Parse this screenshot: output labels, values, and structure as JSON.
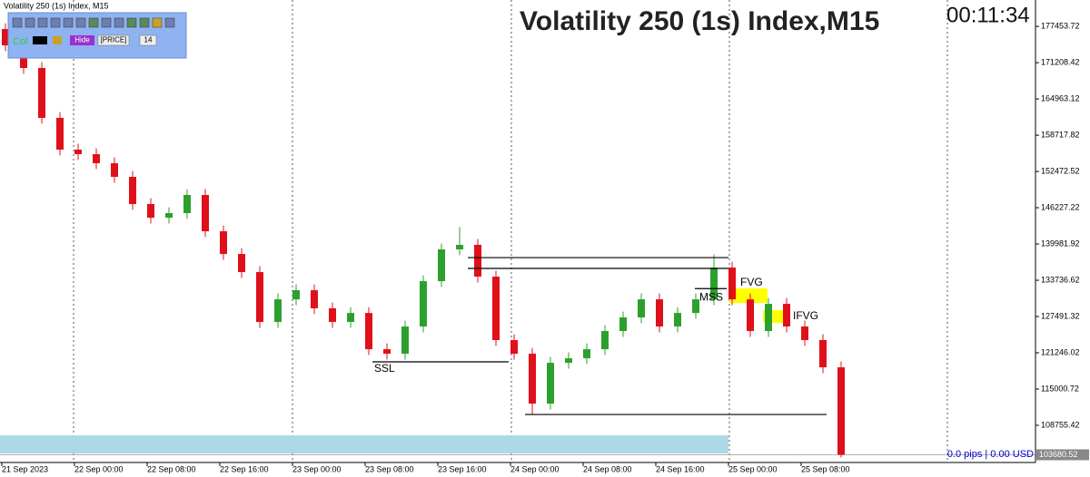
{
  "chart_data": {
    "type": "candlestick",
    "window_title": "Volatility 250 (1s) Index, M15",
    "title": "Volatility 250 (1s) Index,M15",
    "timer": "00:11:34",
    "toolbar": [
      "Col",
      "Hide",
      "[PRICE]",
      "14"
    ],
    "status": "0.0 pips | 0.00 USD",
    "up_color": "#2ca02c",
    "down_color": "#e0101a",
    "candles": [
      [
        177000,
        178000,
        173190,
        174190
      ],
      [
        174190,
        175190,
        169290,
        170290
      ],
      [
        170290,
        171290,
        160700,
        161700
      ],
      [
        161700,
        162700,
        155230,
        156230
      ],
      [
        156230,
        157230,
        154450,
        155450
      ],
      [
        155450,
        156450,
        152900,
        153900
      ],
      [
        153900,
        154900,
        150540,
        151540
      ],
      [
        151540,
        152540,
        145860,
        146860
      ],
      [
        146860,
        147860,
        143500,
        144500
      ],
      [
        144500,
        146300,
        143500,
        145300
      ],
      [
        145300,
        149420,
        144300,
        148420
      ],
      [
        148420,
        149420,
        141170,
        142170
      ],
      [
        142170,
        143170,
        137260,
        138260
      ],
      [
        138260,
        139260,
        134140,
        135140
      ],
      [
        135140,
        136140,
        125550,
        126550
      ],
      [
        126550,
        131450,
        125550,
        130450
      ],
      [
        130450,
        133020,
        129450,
        132020
      ],
      [
        132020,
        133020,
        127900,
        128900
      ],
      [
        128900,
        129900,
        125550,
        126550
      ],
      [
        126550,
        129100,
        125550,
        128100
      ],
      [
        128100,
        129100,
        120860,
        121860
      ],
      [
        121860,
        122860,
        120080,
        121080
      ],
      [
        121080,
        126770,
        120080,
        125770
      ],
      [
        125770,
        134580,
        124770,
        133580
      ],
      [
        133580,
        140050,
        132580,
        139050
      ],
      [
        139050,
        142900,
        138050,
        139830
      ],
      [
        139830,
        140830,
        133360,
        134360
      ],
      [
        134360,
        135360,
        122430,
        123430
      ],
      [
        123430,
        124430,
        120080,
        121080
      ],
      [
        121080,
        122080,
        110600,
        112490
      ],
      [
        112490,
        120520,
        111490,
        119520
      ],
      [
        119520,
        121300,
        118520,
        120300
      ],
      [
        120300,
        122860,
        119300,
        121860
      ],
      [
        121860,
        125990,
        120860,
        124990
      ],
      [
        124990,
        128330,
        123990,
        127330
      ],
      [
        127330,
        131450,
        126330,
        130450
      ],
      [
        130450,
        131450,
        124770,
        125770
      ],
      [
        125770,
        129100,
        124770,
        128100
      ],
      [
        128100,
        131450,
        127100,
        130450
      ],
      [
        130450,
        138200,
        129450,
        135920
      ],
      [
        135920,
        136920,
        129450,
        130450
      ],
      [
        130450,
        131450,
        123990,
        124990
      ],
      [
        124990,
        130670,
        123990,
        129670
      ],
      [
        129670,
        130670,
        124770,
        125770
      ],
      [
        125770,
        126770,
        122430,
        123430
      ],
      [
        123430,
        124430,
        117740,
        118740
      ],
      [
        118740,
        119740,
        103200,
        103680
      ]
    ],
    "ylim": [
      102350,
      182000
    ],
    "yticks": [
      177453.72,
      171208.42,
      164963.12,
      158717.82,
      152472.52,
      146227.22,
      139981.92,
      133736.62,
      127491.32,
      121246.02,
      115000.72,
      108755.42
    ],
    "current_price": 103680.52,
    "xticks": [
      "21 Sep 2023",
      "22 Sep 00:00",
      "22 Sep 08:00",
      "22 Sep 16:00",
      "23 Sep 00:00",
      "23 Sep 08:00",
      "23 Sep 16:00",
      "24 Sep 00:00",
      "24 Sep 08:00",
      "24 Sep 16:00",
      "25 Sep 00:00",
      "25 Sep 08:00"
    ],
    "levels": [
      137640,
      135770,
      119680,
      110620,
      132300
    ],
    "annotations": [
      "SSL",
      "MSS"
    ],
    "zones": [
      {
        "label": "FVG",
        "range": [
          129830,
          132330
        ],
        "color": "#ffff00"
      },
      {
        "label": "IFVG",
        "range": [
          126390,
          128580
        ],
        "color": "#ffff00"
      }
    ],
    "band": [
      103900,
      107020
    ],
    "band_color": "#add8e6"
  }
}
